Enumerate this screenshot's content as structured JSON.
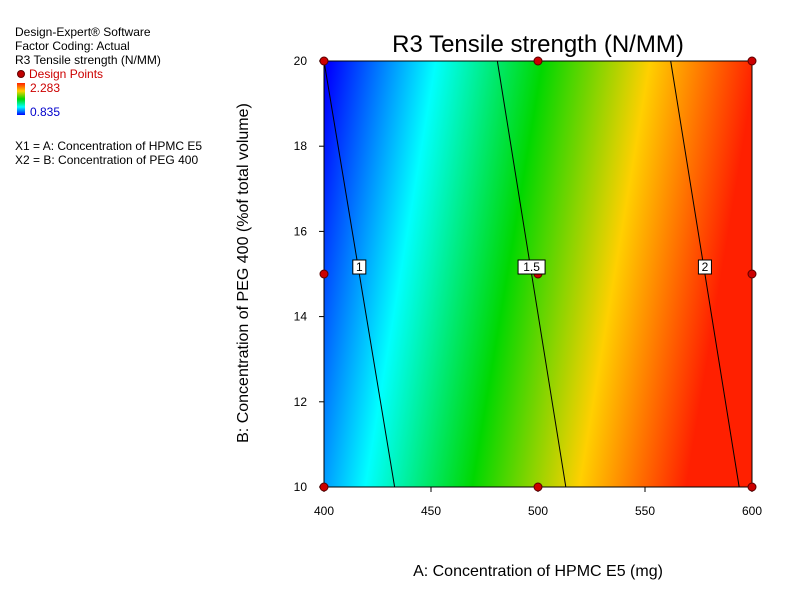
{
  "info": {
    "software": "Design-Expert® Software",
    "coding": "Factor Coding: Actual",
    "response": "R3 Tensile strength (N/MM)",
    "design_points_label": "Design Points",
    "scale_max": "2.283",
    "scale_min": "0.835",
    "x1": "X1 = A: Concentration of HPMC E5",
    "x2": "X2 = B: Concentration of PEG 400"
  },
  "chart_data": {
    "type": "contour",
    "title": "R3 Tensile strength (N/MM)",
    "xlabel": "A: Concentration of HPMC E5 (mg)",
    "ylabel": "B: Concentration of PEG 400 (%of total volume)",
    "xlim": [
      400,
      600
    ],
    "ylim": [
      10,
      20
    ],
    "xticks": [
      400,
      450,
      500,
      550,
      600
    ],
    "yticks": [
      10,
      12,
      14,
      16,
      18,
      20
    ],
    "color_range": [
      0.835,
      2.283
    ],
    "colors": [
      "#0000ff",
      "#00ffff",
      "#00d800",
      "#ffd000",
      "#ff2000"
    ],
    "contours": [
      {
        "label": "1",
        "points": [
          [
            400,
            20
          ],
          [
            433,
            10
          ]
        ]
      },
      {
        "label": "1.5",
        "points": [
          [
            481,
            20
          ],
          [
            513,
            10
          ]
        ]
      },
      {
        "label": "2",
        "points": [
          [
            562,
            20
          ],
          [
            594,
            10
          ]
        ]
      }
    ],
    "design_points": [
      [
        400,
        10
      ],
      [
        500,
        10
      ],
      [
        600,
        10
      ],
      [
        400,
        15
      ],
      [
        500,
        15
      ],
      [
        600,
        15
      ],
      [
        400,
        20
      ],
      [
        500,
        20
      ],
      [
        600,
        20
      ]
    ]
  }
}
